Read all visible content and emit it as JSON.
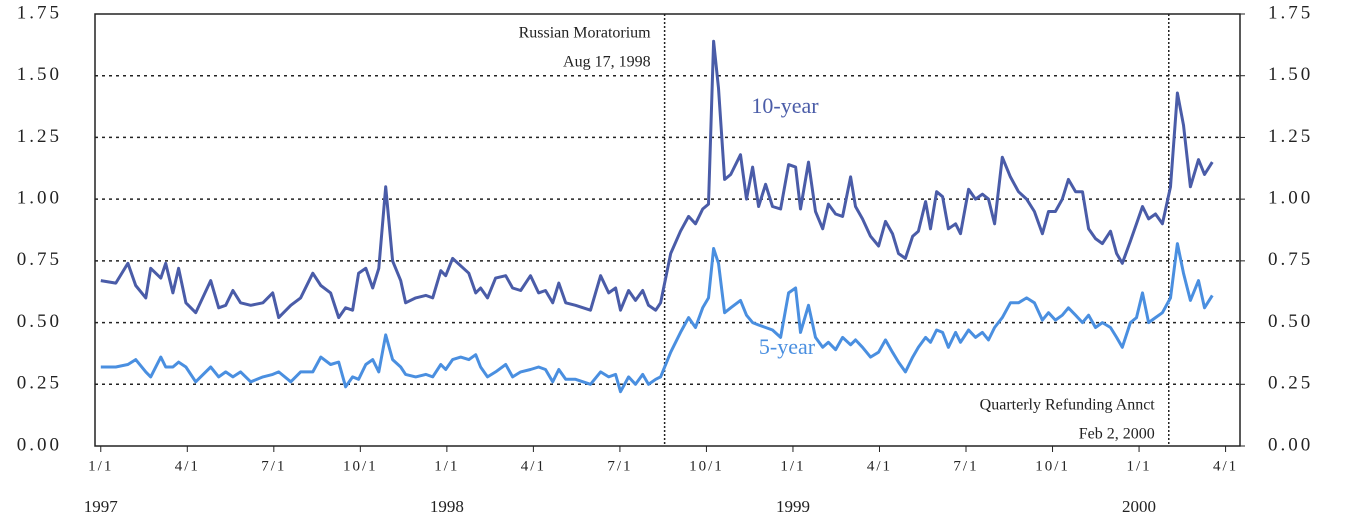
{
  "chart_data": {
    "type": "line",
    "x": [
      0.0,
      0.52,
      0.94,
      1.21,
      1.56,
      1.73,
      2.08,
      2.25,
      2.5,
      2.7,
      2.95,
      3.29,
      3.81,
      4.09,
      4.33,
      4.58,
      4.85,
      5.2,
      5.62,
      5.96,
      6.17,
      6.59,
      6.93,
      7.35,
      7.63,
      7.97,
      8.25,
      8.49,
      8.73,
      8.94,
      9.19,
      9.43,
      9.64,
      9.88,
      10.12,
      10.4,
      10.57,
      10.92,
      11.27,
      11.51,
      11.79,
      11.96,
      12.2,
      12.48,
      12.76,
      13.0,
      13.17,
      13.41,
      13.69,
      14.04,
      14.28,
      14.56,
      14.9,
      15.18,
      15.42,
      15.67,
      15.88,
      16.12,
      16.46,
      16.98,
      17.33,
      17.61,
      17.85,
      18.02,
      18.3,
      18.54,
      18.79,
      18.99,
      19.24,
      19.41,
      19.76,
      20.1,
      20.38,
      20.62,
      20.87,
      21.07,
      21.25,
      21.42,
      21.63,
      21.84,
      22.18,
      22.39,
      22.6,
      22.81,
      23.05,
      23.29,
      23.57,
      23.85,
      24.09,
      24.26,
      24.54,
      24.78,
      25.03,
      25.23,
      25.48,
      25.72,
      26.0,
      26.17,
      26.41,
      26.69,
      26.97,
      27.21,
      27.45,
      27.66,
      27.9,
      28.15,
      28.35,
      28.6,
      28.77,
      28.98,
      29.19,
      29.39,
      29.64,
      29.81,
      30.09,
      30.33,
      30.57,
      30.78,
      30.99,
      31.26,
      31.54,
      31.82,
      32.1,
      32.37,
      32.65,
      32.86,
      33.1,
      33.34,
      33.55,
      33.8,
      34.04,
      34.25,
      34.49,
      34.73,
      35.01,
      35.22,
      35.42,
      35.7,
      35.91,
      36.12,
      36.33,
      36.57,
      36.81,
      37.09,
      37.33,
      37.54,
      37.78,
      38.06,
      38.27,
      38.54
    ],
    "series": [
      {
        "name": "10-year",
        "color": "#4a5ca8",
        "values": [
          0.67,
          0.66,
          0.74,
          0.65,
          0.6,
          0.72,
          0.68,
          0.74,
          0.62,
          0.72,
          0.58,
          0.54,
          0.67,
          0.56,
          0.57,
          0.63,
          0.58,
          0.57,
          0.58,
          0.62,
          0.52,
          0.57,
          0.6,
          0.7,
          0.65,
          0.62,
          0.52,
          0.56,
          0.55,
          0.7,
          0.72,
          0.64,
          0.72,
          1.05,
          0.75,
          0.67,
          0.58,
          0.6,
          0.61,
          0.6,
          0.71,
          0.69,
          0.76,
          0.73,
          0.7,
          0.62,
          0.64,
          0.6,
          0.68,
          0.69,
          0.64,
          0.63,
          0.69,
          0.62,
          0.63,
          0.58,
          0.66,
          0.58,
          0.57,
          0.55,
          0.69,
          0.62,
          0.64,
          0.55,
          0.63,
          0.59,
          0.63,
          0.57,
          0.55,
          0.58,
          0.78,
          0.87,
          0.93,
          0.9,
          0.96,
          0.98,
          1.64,
          1.45,
          1.08,
          1.1,
          1.18,
          1.0,
          1.13,
          0.97,
          1.06,
          0.97,
          0.96,
          1.14,
          1.13,
          0.96,
          1.15,
          0.95,
          0.88,
          0.98,
          0.94,
          0.93,
          1.09,
          0.97,
          0.92,
          0.85,
          0.81,
          0.91,
          0.86,
          0.78,
          0.76,
          0.85,
          0.87,
          0.99,
          0.88,
          1.03,
          1.01,
          0.88,
          0.9,
          0.86,
          1.04,
          1.0,
          1.02,
          1.0,
          0.9,
          1.17,
          1.09,
          1.03,
          1.0,
          0.95,
          0.86,
          0.95,
          0.95,
          1.0,
          1.08,
          1.03,
          1.03,
          0.88,
          0.84,
          0.82,
          0.87,
          0.78,
          0.74,
          0.83,
          0.9,
          0.97,
          0.92,
          0.94,
          0.9,
          1.05,
          1.43,
          1.3,
          1.05,
          1.16,
          1.1,
          1.15
        ]
      },
      {
        "name": "5-year",
        "color": "#4a8fe0",
        "values": [
          0.32,
          0.32,
          0.33,
          0.35,
          0.3,
          0.28,
          0.36,
          0.32,
          0.32,
          0.34,
          0.32,
          0.26,
          0.32,
          0.28,
          0.3,
          0.28,
          0.3,
          0.26,
          0.28,
          0.29,
          0.3,
          0.26,
          0.3,
          0.3,
          0.36,
          0.33,
          0.34,
          0.24,
          0.28,
          0.27,
          0.33,
          0.35,
          0.3,
          0.45,
          0.35,
          0.32,
          0.29,
          0.28,
          0.29,
          0.28,
          0.33,
          0.31,
          0.35,
          0.36,
          0.35,
          0.37,
          0.32,
          0.28,
          0.3,
          0.33,
          0.28,
          0.3,
          0.31,
          0.32,
          0.31,
          0.26,
          0.31,
          0.27,
          0.27,
          0.25,
          0.3,
          0.28,
          0.29,
          0.22,
          0.28,
          0.25,
          0.29,
          0.25,
          0.27,
          0.28,
          0.38,
          0.46,
          0.52,
          0.48,
          0.56,
          0.6,
          0.8,
          0.74,
          0.54,
          0.56,
          0.59,
          0.53,
          0.5,
          0.49,
          0.48,
          0.47,
          0.44,
          0.62,
          0.64,
          0.46,
          0.57,
          0.44,
          0.4,
          0.42,
          0.39,
          0.44,
          0.41,
          0.43,
          0.4,
          0.36,
          0.38,
          0.43,
          0.38,
          0.34,
          0.3,
          0.36,
          0.4,
          0.44,
          0.42,
          0.47,
          0.46,
          0.4,
          0.46,
          0.42,
          0.47,
          0.44,
          0.46,
          0.43,
          0.48,
          0.52,
          0.58,
          0.58,
          0.6,
          0.58,
          0.51,
          0.54,
          0.51,
          0.53,
          0.56,
          0.53,
          0.5,
          0.53,
          0.48,
          0.5,
          0.48,
          0.44,
          0.4,
          0.5,
          0.52,
          0.62,
          0.5,
          0.52,
          0.54,
          0.6,
          0.82,
          0.7,
          0.59,
          0.67,
          0.56,
          0.61
        ]
      }
    ],
    "xlim": [
      -0.2,
      39.5
    ],
    "xticks": [
      {
        "value": 0,
        "label": "1/1"
      },
      {
        "value": 3,
        "label": "4/1"
      },
      {
        "value": 6,
        "label": "7/1"
      },
      {
        "value": 9,
        "label": "10/1"
      },
      {
        "value": 12,
        "label": "1/1"
      },
      {
        "value": 15,
        "label": "4/1"
      },
      {
        "value": 18,
        "label": "7/1"
      },
      {
        "value": 21,
        "label": "10/1"
      },
      {
        "value": 24,
        "label": "1/1"
      },
      {
        "value": 27,
        "label": "4/1"
      },
      {
        "value": 30,
        "label": "7/1"
      },
      {
        "value": 33,
        "label": "10/1"
      },
      {
        "value": 36,
        "label": "1/1"
      },
      {
        "value": 39,
        "label": "4/1"
      }
    ],
    "year_labels": [
      {
        "value": 0,
        "label": "1997"
      },
      {
        "value": 12,
        "label": "1998"
      },
      {
        "value": 24,
        "label": "1999"
      },
      {
        "value": 36,
        "label": "2000"
      }
    ],
    "ylim": [
      0,
      1.75
    ],
    "yticks": [
      {
        "value": 0,
        "label": "0.00"
      },
      0.25,
      {
        "value": 0.5,
        "label": "0.50"
      },
      0.75,
      {
        "value": 1,
        "label": "1.00"
      },
      1.25,
      {
        "value": 1.5,
        "label": "1.50"
      },
      1.75
    ],
    "y2lim": [
      0,
      1.75
    ],
    "y2ticks": [
      {
        "value": 0,
        "label": "0.00"
      },
      0.25,
      {
        "value": 0.5,
        "label": "0.50"
      },
      0.75,
      {
        "value": 1,
        "label": "1.00"
      },
      1.25,
      {
        "value": 1.5,
        "label": "1.50"
      },
      1.75
    ],
    "grid": true,
    "annotations": [
      {
        "text": "Russian Moratorium",
        "subtext": "Aug 17, 1998",
        "x": 19.55
      },
      {
        "text": "Quarterly Refunding Annct",
        "subtext": "Feb 2, 2000",
        "x": 37.03
      }
    ]
  }
}
